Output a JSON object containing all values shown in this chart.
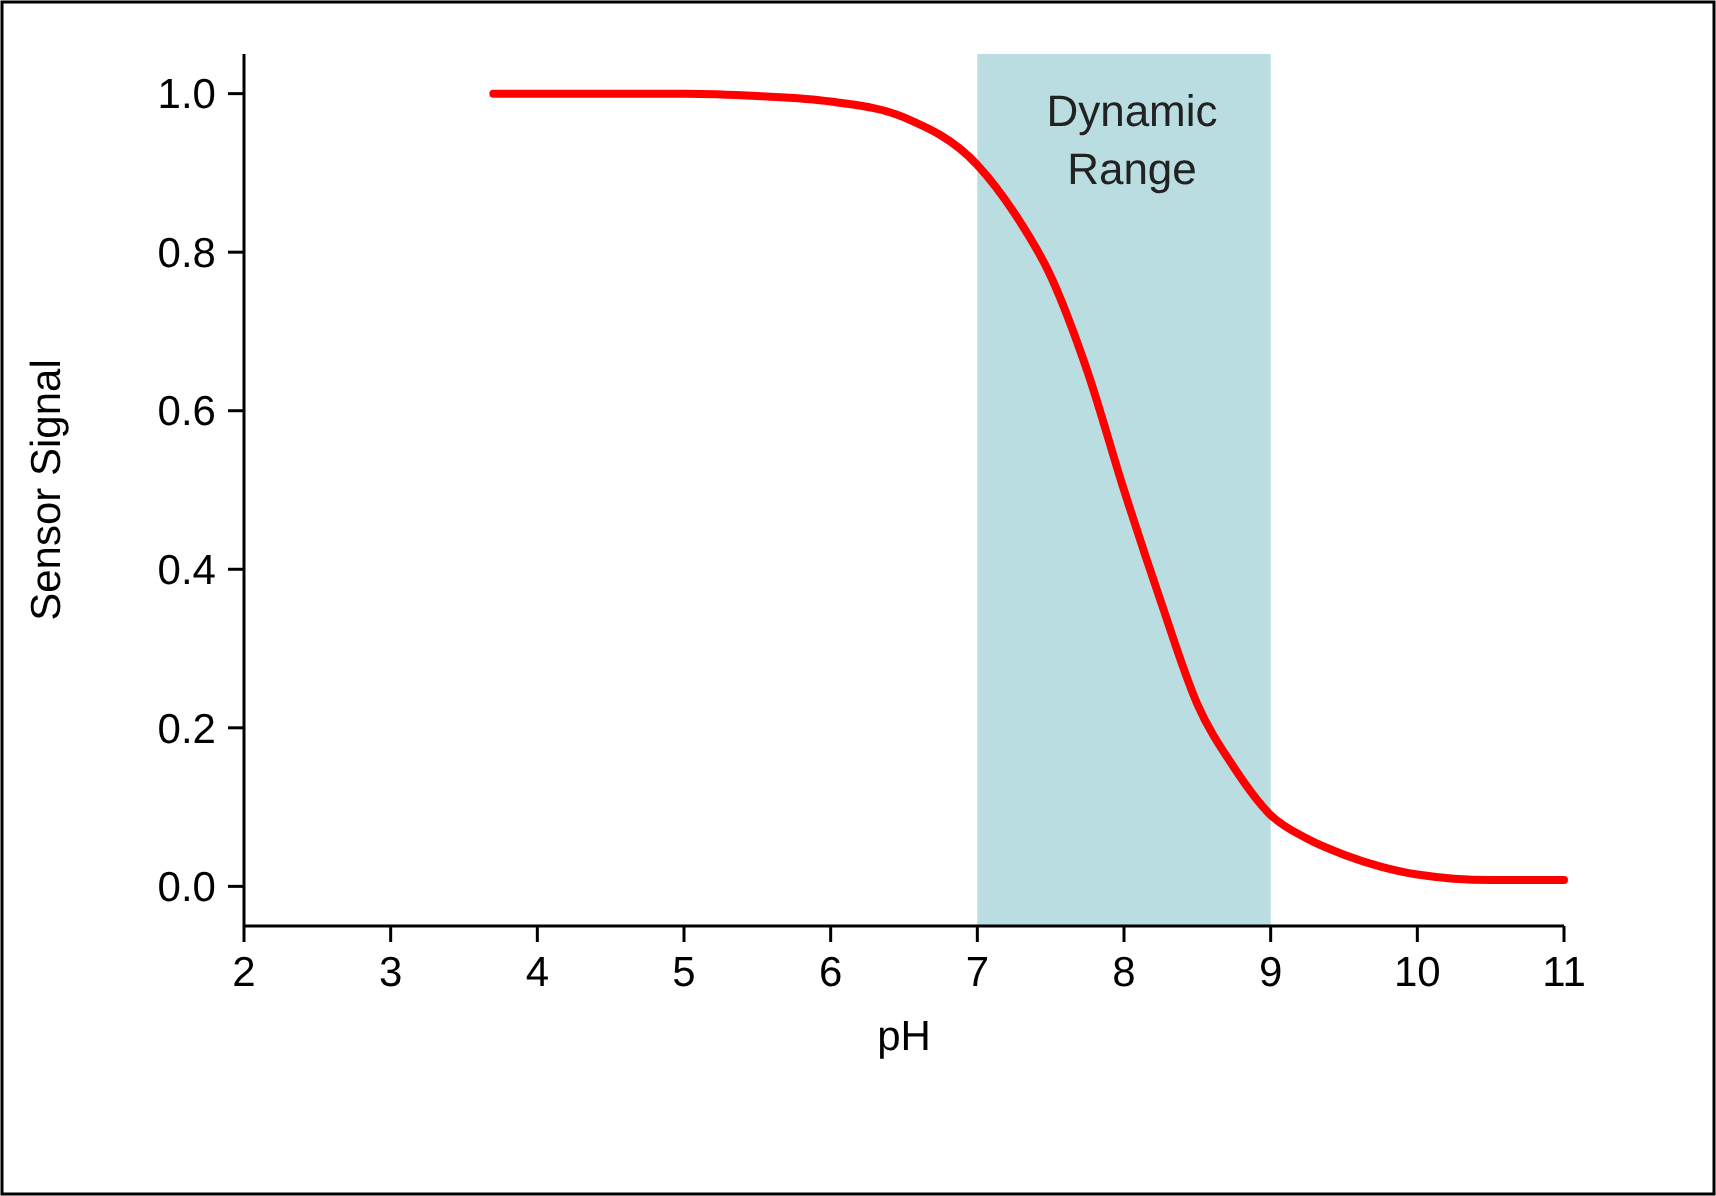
{
  "chart_data": {
    "type": "line",
    "xlabel": "pH",
    "ylabel": "Sensor Signal",
    "xlim": [
      2,
      11
    ],
    "xticks": [
      2,
      3,
      4,
      5,
      6,
      7,
      8,
      9,
      10,
      11
    ],
    "ylim": [
      -0.05,
      1.05
    ],
    "yticks": [
      {
        "value": 0,
        "label": "0.0"
      },
      {
        "value": 0.2,
        "label": "0.2"
      },
      {
        "value": 0.4,
        "label": "0.4"
      },
      {
        "value": 0.6,
        "label": "0.6"
      },
      {
        "value": 0.8,
        "label": "0.8"
      },
      {
        "value": 1,
        "label": "1.0"
      }
    ],
    "grid": false,
    "marker": "none",
    "line_style": "solid",
    "series": [
      {
        "color": "#ff0000",
        "x": [
          3.7,
          4.5,
          5,
          5.5,
          6,
          6.5,
          7,
          7.25,
          7.5,
          7.75,
          8,
          8.25,
          8.5,
          8.75,
          9,
          9.25,
          9.5,
          9.75,
          10,
          10.5,
          11
        ],
        "values": [
          1.0,
          1.0,
          1.0,
          0.997,
          0.99,
          0.97,
          0.91,
          0.85,
          0.77,
          0.65,
          0.5,
          0.36,
          0.23,
          0.15,
          0.09,
          0.06,
          0.04,
          0.025,
          0.015,
          0.008,
          0.008
        ]
      }
    ],
    "bands": [
      {
        "axis": "x",
        "from": 7,
        "to": 9,
        "label": "Dynamic Range",
        "color": "#b9dde0"
      }
    ]
  }
}
